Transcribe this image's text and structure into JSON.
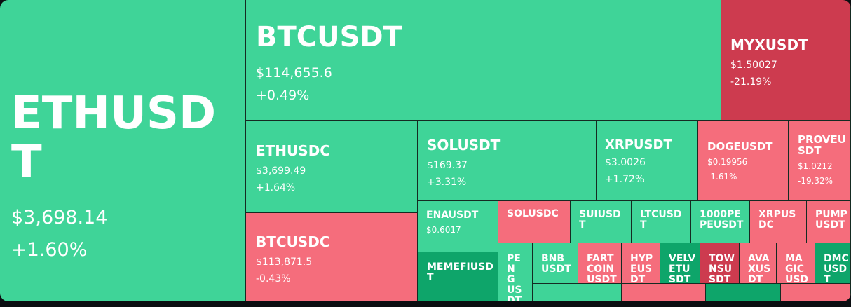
{
  "tiles": [
    {
      "symbol": "ETHUSDT",
      "price": "$3,698.14",
      "change": "+1.60%",
      "tone": "up"
    },
    {
      "symbol": "BTCUSDT",
      "price": "$114,655.6",
      "change": "+0.49%",
      "tone": "up"
    },
    {
      "symbol": "MYXUSDT",
      "price": "$1.50027",
      "change": "-21.19%",
      "tone": "dark-down"
    },
    {
      "symbol": "ETHUSDC",
      "price": "$3,699.49",
      "change": "+1.64%",
      "tone": "up"
    },
    {
      "symbol": "SOLUSDT",
      "price": "$169.37",
      "change": "+3.31%",
      "tone": "up"
    },
    {
      "symbol": "XRPUSDT",
      "price": "$3.0026",
      "change": "+1.72%",
      "tone": "up"
    },
    {
      "symbol": "DOGEUSDT",
      "price": "$0.19956",
      "change": "-1.61%",
      "tone": "down"
    },
    {
      "symbol": "PROVEUSDT",
      "price": "$1.0212",
      "change": "-19.32%",
      "tone": "down"
    },
    {
      "symbol": "BTCUSDC",
      "price": "$113,871.5",
      "change": "-0.43%",
      "tone": "down"
    },
    {
      "symbol": "ENAUSDT",
      "price": "$0.6017",
      "change": "",
      "tone": "up"
    },
    {
      "symbol": "SOLUSDC",
      "price": "",
      "change": "",
      "tone": "down"
    },
    {
      "symbol": "SUIUSDT",
      "price": "",
      "change": "",
      "tone": "up"
    },
    {
      "symbol": "LTCUSDT",
      "price": "",
      "change": "",
      "tone": "up"
    },
    {
      "symbol": "1000PEPEUSDT",
      "price": "",
      "change": "",
      "tone": "up"
    },
    {
      "symbol": "XRPUSDC",
      "price": "",
      "change": "",
      "tone": "down"
    },
    {
      "symbol": "PUMPUSDT",
      "price": "",
      "change": "",
      "tone": "down"
    },
    {
      "symbol": "MEMEFIUSDT",
      "price": "",
      "change": "",
      "tone": "dark-up"
    },
    {
      "symbol": "PENGUSDT",
      "price": "",
      "change": "",
      "tone": "up"
    },
    {
      "symbol": "BNBUSDT",
      "price": "",
      "change": "",
      "tone": "up"
    },
    {
      "symbol": "FARTCOINUSDT",
      "price": "",
      "change": "",
      "tone": "down"
    },
    {
      "symbol": "HYPEUSDT",
      "price": "",
      "change": "",
      "tone": "down"
    },
    {
      "symbol": "VELVETUSDT",
      "price": "",
      "change": "",
      "tone": "dark-up"
    },
    {
      "symbol": "TOWNSUSDT",
      "price": "",
      "change": "",
      "tone": "dark-down"
    },
    {
      "symbol": "AVAXUSDT",
      "price": "",
      "change": "",
      "tone": "down"
    },
    {
      "symbol": "MAGICUSDT",
      "price": "",
      "change": "",
      "tone": "down"
    },
    {
      "symbol": "DMCUSDT",
      "price": "",
      "change": "",
      "tone": "dark-up"
    },
    {
      "symbol": "",
      "price": "",
      "change": "",
      "tone": "up"
    },
    {
      "symbol": "",
      "price": "",
      "change": "",
      "tone": "down"
    },
    {
      "symbol": "",
      "price": "",
      "change": "",
      "tone": "dark-up"
    },
    {
      "symbol": "",
      "price": "",
      "change": "",
      "tone": "down"
    }
  ]
}
